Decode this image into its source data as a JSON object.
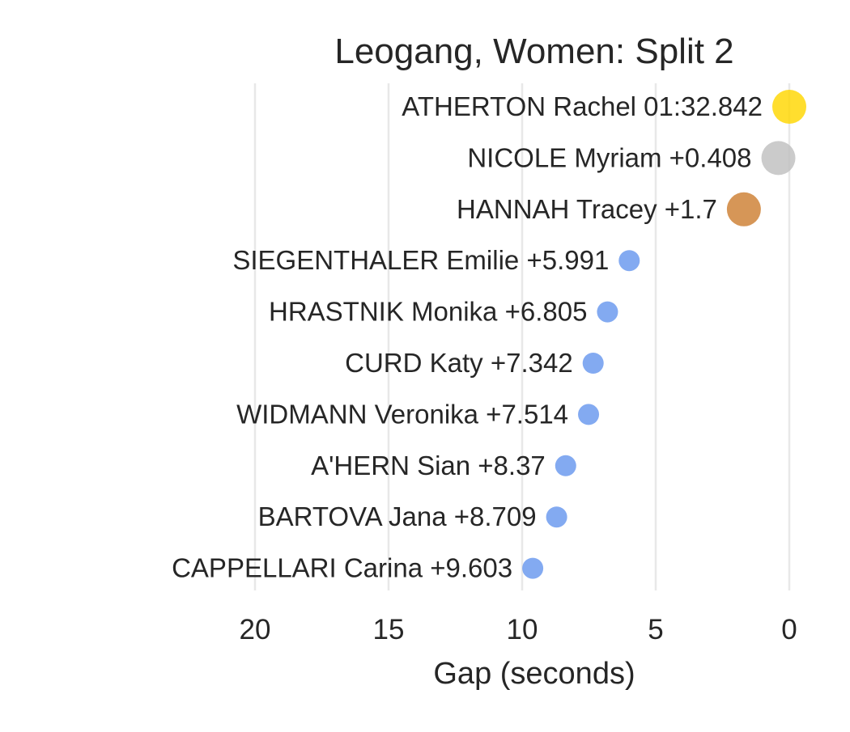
{
  "chart_data": {
    "type": "scatter",
    "title": "Leogang, Women: Split 2",
    "xlabel": "Gap (seconds)",
    "ylabel": "",
    "xlim": [
      0,
      20
    ],
    "x_inverted": true,
    "xticks": [
      20,
      15,
      10,
      5,
      0
    ],
    "grid": "vertical",
    "points": [
      {
        "label": "ATHERTON Rachel 01:32.842",
        "gap": 0.0,
        "medal": "gold"
      },
      {
        "label": "NICOLE Myriam +0.408",
        "gap": 0.408,
        "medal": "silver"
      },
      {
        "label": "HANNAH Tracey +1.7",
        "gap": 1.7,
        "medal": "bronze"
      },
      {
        "label": "SIEGENTHALER Emilie +5.991",
        "gap": 5.991,
        "medal": "none"
      },
      {
        "label": "HRASTNIK Monika +6.805",
        "gap": 6.805,
        "medal": "none"
      },
      {
        "label": "CURD Katy +7.342",
        "gap": 7.342,
        "medal": "none"
      },
      {
        "label": "WIDMANN Veronika +7.514",
        "gap": 7.514,
        "medal": "none"
      },
      {
        "label": "A'HERN Sian +8.37",
        "gap": 8.37,
        "medal": "none"
      },
      {
        "label": "BARTOVA Jana +8.709",
        "gap": 8.709,
        "medal": "none"
      },
      {
        "label": "CAPPELLARI Carina +9.603",
        "gap": 9.603,
        "medal": "none"
      }
    ],
    "colors": {
      "gold": "#ffd700",
      "silver": "#c0c0c0",
      "bronze": "#cd7f32",
      "none": "#6495ed"
    }
  }
}
